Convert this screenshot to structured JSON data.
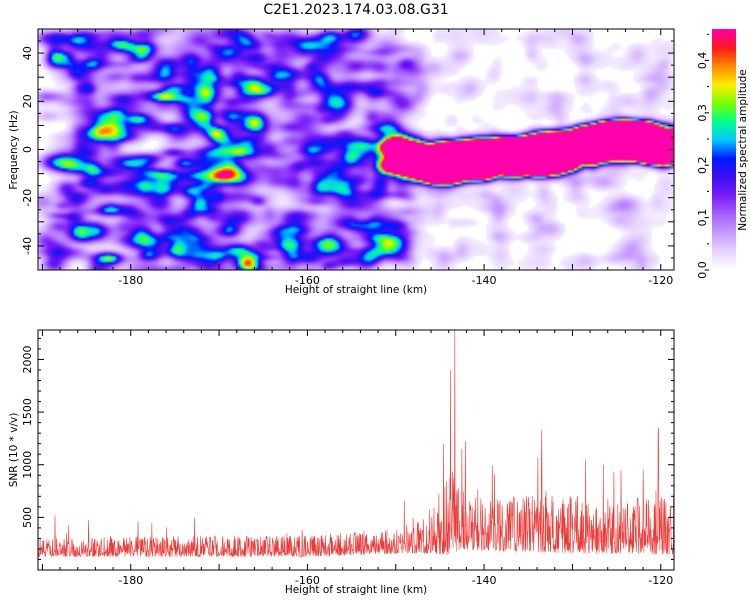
{
  "title": "C2E1.2023.174.03.08.G31",
  "colors": {
    "snr_line": "#ee3a36",
    "colormap": [
      "#ffffff",
      "#e6d2ff",
      "#c79bff",
      "#a45fff",
      "#7b1df5",
      "#3d10f0",
      "#0018ff",
      "#00c8ff",
      "#00ff90",
      "#7aff00",
      "#ffee00",
      "#ff8a00",
      "#ff1a1a",
      "#ff00aa"
    ]
  },
  "chart_data": [
    {
      "type": "heatmap",
      "xlabel": "Height of straight line (km)",
      "ylabel": "Frequency (Hz)",
      "xlim": [
        -190.5,
        -118.5
      ],
      "ylim": [
        -50,
        50
      ],
      "xticks": [
        -180,
        -160,
        -140,
        -120
      ],
      "xtick_labels": [
        "-180",
        "-160",
        "-140",
        "-120"
      ],
      "yticks": [
        -40,
        -20,
        0,
        20,
        40
      ],
      "ytick_labels": [
        "-40",
        "-20",
        "0",
        "20",
        "40"
      ],
      "colorbar": {
        "label": "Normalized spectral amplitude",
        "range": [
          0,
          0.46
        ],
        "ticks": [
          0,
          0.1,
          0.2,
          0.3,
          0.4
        ],
        "tick_labels": [
          "0.0",
          "0.1",
          "0.2",
          "0.3",
          "0.4"
        ]
      },
      "features": {
        "noise_region_x": [
          -190.5,
          -150
        ],
        "noise_amplitude": 0.07,
        "signal_start_x": -151,
        "signal_track": {
          "x": [
            -151,
            -145,
            -140,
            -135,
            -130,
            -125,
            -119
          ],
          "y": [
            -2,
            -6,
            -4,
            -3,
            0,
            4,
            2
          ]
        },
        "signal_halfwidth_hz": 7,
        "signal_peak_amplitude": 0.45,
        "peak_spots": [
          {
            "x": -136.5,
            "y": -2
          },
          {
            "x": -129,
            "y": 3
          }
        ]
      }
    },
    {
      "type": "line",
      "xlabel": "Height of straight line (km)",
      "ylabel": "SNR (10 * v/v)",
      "xlim": [
        -190.5,
        -118.5
      ],
      "ylim": [
        0,
        2280
      ],
      "xticks": [
        -180,
        -160,
        -140,
        -120
      ],
      "xtick_labels": [
        "-180",
        "-160",
        "-140",
        "-120"
      ],
      "yticks": [
        500,
        1000,
        1500,
        2000
      ],
      "ytick_labels": [
        "500",
        "1000",
        "1500",
        "2000"
      ],
      "series": [
        {
          "color": "#ee3a36",
          "envelope": {
            "x": [
              -190.5,
              -160,
              -152,
              -148,
              -145,
              -143.5,
              -143,
              -140,
              -135,
              -130,
              -125,
              -120,
              -118.5
            ],
            "baseline": [
              190,
              200,
              230,
              260,
              330,
              450,
              400,
              360,
              360,
              350,
              340,
              340,
              330
            ],
            "spread": [
              140,
              160,
              180,
              220,
              400,
              700,
              450,
              380,
              420,
              420,
              400,
              420,
              400
            ]
          },
          "spikes": [
            {
              "x": -143.3,
              "y": 2280
            },
            {
              "x": -143.8,
              "y": 1900
            },
            {
              "x": -144.6,
              "y": 1200
            },
            {
              "x": -142.5,
              "y": 1150
            },
            {
              "x": -133.5,
              "y": 1000
            },
            {
              "x": -128.5,
              "y": 1050
            },
            {
              "x": -126.5,
              "y": 1000
            },
            {
              "x": -124.5,
              "y": 950
            },
            {
              "x": -122,
              "y": 950
            },
            {
              "x": -120.3,
              "y": 1290
            }
          ]
        }
      ]
    }
  ]
}
